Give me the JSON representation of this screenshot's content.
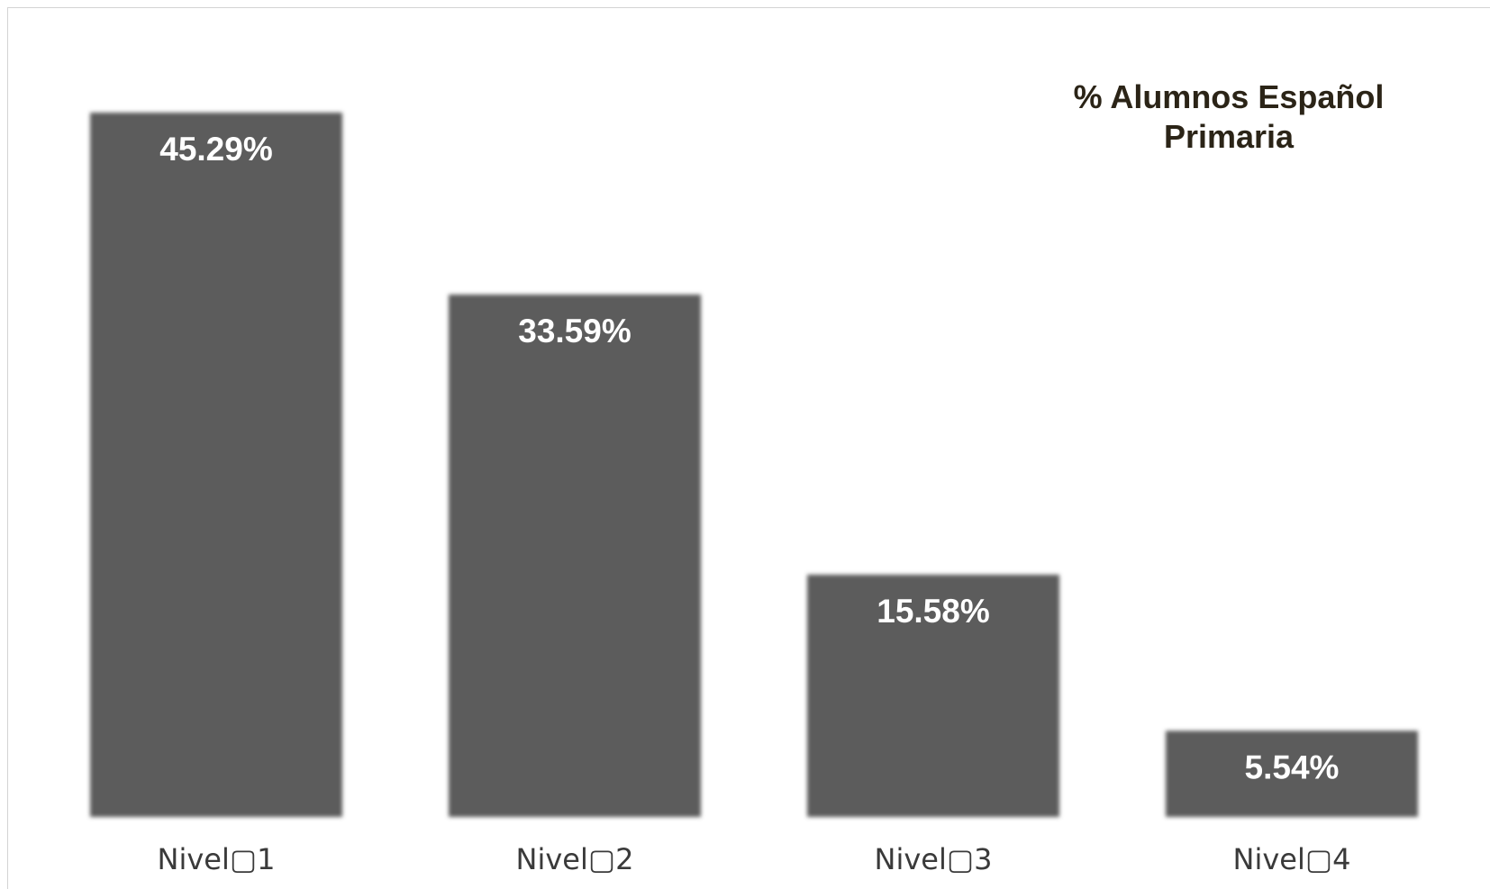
{
  "chart_data": {
    "type": "bar",
    "title": [
      "% Alumnos Español",
      "Primaria"
    ],
    "categories": [
      "Nivel▢1",
      "Nivel▢2",
      "Nivel▢3",
      "Nivel▢4"
    ],
    "values": [
      45.29,
      33.59,
      15.58,
      5.54
    ],
    "value_labels": [
      "45.29%",
      "33.59%",
      "15.58%",
      "5.54%"
    ],
    "xlabel": "",
    "ylabel": "",
    "ylim": [
      0,
      45.29
    ],
    "grid": false,
    "legend": "none",
    "bar_color": "#5c5c5c",
    "title_color": "#2b2417"
  }
}
